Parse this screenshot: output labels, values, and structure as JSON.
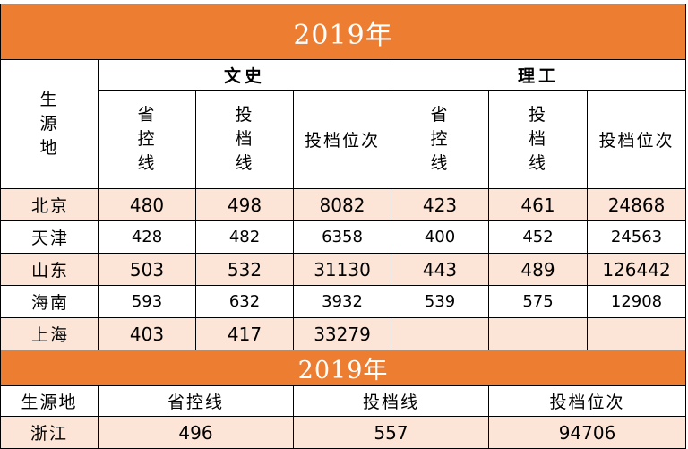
{
  "table1": {
    "title": "2019年",
    "source_header": [
      "生",
      "源",
      "地"
    ],
    "groups": [
      "文史",
      "理工"
    ],
    "col_headers": {
      "provincial_line": [
        "省",
        "控",
        "线"
      ],
      "admission_line": [
        "投",
        "档",
        "线"
      ],
      "admission_rank": "投档位次"
    },
    "rows": [
      {
        "place": "北京",
        "wen": [
          "480",
          "498",
          "8082"
        ],
        "li": [
          "423",
          "461",
          "24868"
        ]
      },
      {
        "place": "天津",
        "wen": [
          "428",
          "482",
          "6358"
        ],
        "li": [
          "400",
          "452",
          "24563"
        ]
      },
      {
        "place": "山东",
        "wen": [
          "503",
          "532",
          "31130"
        ],
        "li": [
          "443",
          "489",
          "126442"
        ]
      },
      {
        "place": "海南",
        "wen": [
          "593",
          "632",
          "3932"
        ],
        "li": [
          "539",
          "575",
          "12908"
        ]
      },
      {
        "place": "上海",
        "wen": [
          "403",
          "417",
          "33279"
        ],
        "li": [
          "",
          "",
          ""
        ]
      }
    ]
  },
  "table2": {
    "title": "2019年",
    "headers": [
      "生源地",
      "省控线",
      "投档线",
      "投档位次"
    ],
    "row": {
      "place": "浙江",
      "values": [
        "496",
        "557",
        "94706"
      ]
    }
  },
  "colors": {
    "banner": "#ed7d31",
    "band": "#fce4d6"
  }
}
